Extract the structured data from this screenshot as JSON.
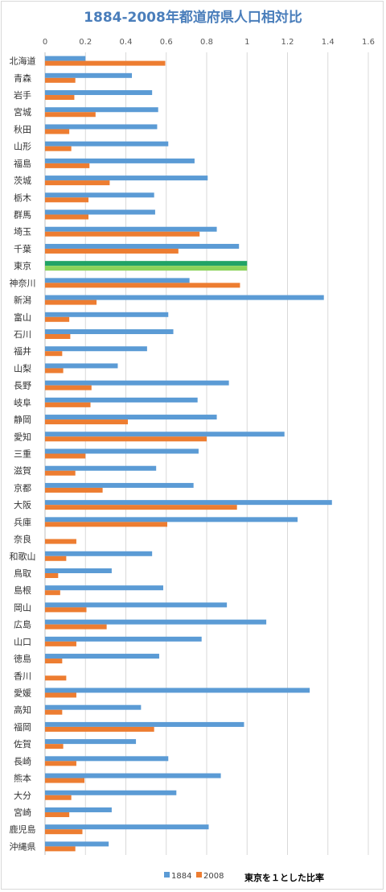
{
  "chart_data": {
    "type": "bar",
    "orientation": "horizontal",
    "title": "1884-2008年都道府県人口相対比",
    "note": "東京を１とした比率",
    "xlim": [
      0,
      1.6
    ],
    "xticks": [
      "0",
      "0.2",
      "0.4",
      "0.6",
      "0.8",
      "1",
      "1.2",
      "1.4",
      "1.6"
    ],
    "grid": true,
    "legend_position": "bottom",
    "categories": [
      "北海道",
      "青森",
      "岩手",
      "宮城",
      "秋田",
      "山形",
      "福島",
      "茨城",
      "栃木",
      "群馬",
      "埼玉",
      "千葉",
      "東京",
      "神奈川",
      "新潟",
      "富山",
      "石川",
      "福井",
      "山梨",
      "長野",
      "岐阜",
      "静岡",
      "愛知",
      "三重",
      "滋賀",
      "京都",
      "大阪",
      "兵庫",
      "奈良",
      "和歌山",
      "鳥取",
      "島根",
      "岡山",
      "広島",
      "山口",
      "徳島",
      "香川",
      "愛媛",
      "高知",
      "福岡",
      "佐賀",
      "長崎",
      "熊本",
      "大分",
      "宮崎",
      "鹿児島",
      "沖縄県"
    ],
    "series": [
      {
        "name": "1884",
        "color": "#5b9bd5",
        "values": [
          0.2,
          0.43,
          0.53,
          0.56,
          0.555,
          0.61,
          0.74,
          0.805,
          0.54,
          0.545,
          0.85,
          0.96,
          1.0,
          0.715,
          1.38,
          0.61,
          0.635,
          0.505,
          0.36,
          0.91,
          0.755,
          0.85,
          1.185,
          0.76,
          0.55,
          0.735,
          1.42,
          1.25,
          0.0,
          0.53,
          0.33,
          0.585,
          0.9,
          1.095,
          0.775,
          0.565,
          0.0,
          1.31,
          0.475,
          0.985,
          0.45,
          0.61,
          0.87,
          0.65,
          0.33,
          0.81,
          0.315
        ]
      },
      {
        "name": "2008",
        "color": "#ed7d31",
        "values": [
          0.595,
          0.15,
          0.145,
          0.25,
          0.12,
          0.13,
          0.22,
          0.32,
          0.215,
          0.215,
          0.765,
          0.66,
          1.0,
          0.965,
          0.255,
          0.12,
          0.125,
          0.085,
          0.09,
          0.23,
          0.225,
          0.41,
          0.8,
          0.2,
          0.15,
          0.285,
          0.95,
          0.605,
          0.155,
          0.105,
          0.065,
          0.075,
          0.205,
          0.305,
          0.155,
          0.085,
          0.105,
          0.155,
          0.085,
          0.54,
          0.09,
          0.155,
          0.195,
          0.13,
          0.12,
          0.185,
          0.15
        ]
      }
    ],
    "highlight": {
      "category": "東京",
      "colors": [
        "#21a366",
        "#8bd35a"
      ]
    }
  }
}
